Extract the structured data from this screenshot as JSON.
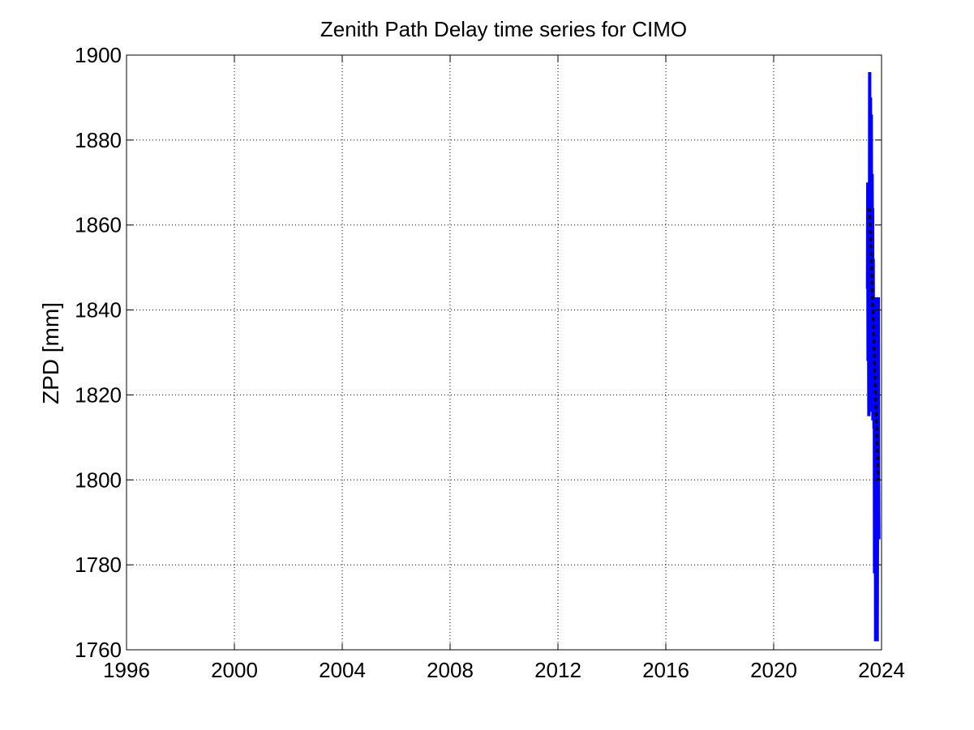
{
  "chart_data": {
    "type": "line",
    "title": "Zenith Path Delay time series for CIMO",
    "xlabel": "",
    "ylabel": "ZPD [mm]",
    "xlim": [
      1996,
      2024
    ],
    "ylim": [
      1760,
      1900
    ],
    "x_ticks": [
      "1996",
      "2000",
      "2004",
      "2008",
      "2012",
      "2016",
      "2020",
      "2024"
    ],
    "y_ticks": [
      "1760",
      "1780",
      "1800",
      "1820",
      "1840",
      "1860",
      "1880",
      "1900"
    ],
    "grid": true,
    "legend": "none",
    "colors": {
      "data": "#0000ff",
      "mean": "#000000",
      "grid": "#000000",
      "axes": "#000000"
    },
    "series": [
      {
        "style": "solid",
        "points": [
          [
            2023.48,
            1845
          ],
          [
            2023.49,
            1870
          ],
          [
            2023.5,
            1828
          ],
          [
            2023.51,
            1862
          ],
          [
            2023.52,
            1840
          ],
          [
            2023.53,
            1815
          ],
          [
            2023.54,
            1855
          ],
          [
            2023.55,
            1832
          ],
          [
            2023.56,
            1896
          ],
          [
            2023.57,
            1836
          ],
          [
            2023.58,
            1818
          ],
          [
            2023.59,
            1890
          ],
          [
            2023.6,
            1846
          ],
          [
            2023.61,
            1816
          ],
          [
            2023.62,
            1886
          ],
          [
            2023.63,
            1840
          ],
          [
            2023.64,
            1822
          ],
          [
            2023.65,
            1872
          ],
          [
            2023.66,
            1832
          ],
          [
            2023.67,
            1864
          ],
          [
            2023.68,
            1814
          ],
          [
            2023.69,
            1852
          ],
          [
            2023.7,
            1820
          ],
          [
            2023.71,
            1843
          ],
          [
            2023.72,
            1812
          ],
          [
            2023.73,
            1838
          ],
          [
            2023.74,
            1778
          ],
          [
            2023.75,
            1808
          ],
          [
            2023.76,
            1785
          ],
          [
            2023.77,
            1843
          ],
          [
            2023.78,
            1762
          ],
          [
            2023.79,
            1800
          ],
          [
            2023.8,
            1766
          ],
          [
            2023.81,
            1786
          ],
          [
            2023.82,
            1764
          ],
          [
            2023.83,
            1800
          ],
          [
            2023.84,
            1762
          ],
          [
            2023.85,
            1790
          ],
          [
            2023.86,
            1812
          ],
          [
            2023.87,
            1786
          ],
          [
            2023.88,
            1843
          ],
          [
            2023.89,
            1800
          ],
          [
            2023.9,
            1786
          ]
        ]
      },
      {
        "style": "dashed",
        "points": [
          [
            2023.55,
            1864
          ],
          [
            2023.6,
            1856
          ],
          [
            2023.65,
            1846
          ],
          [
            2023.7,
            1836
          ],
          [
            2023.75,
            1826
          ],
          [
            2023.8,
            1816
          ],
          [
            2023.85,
            1806
          ],
          [
            2023.88,
            1800
          ]
        ]
      }
    ]
  }
}
